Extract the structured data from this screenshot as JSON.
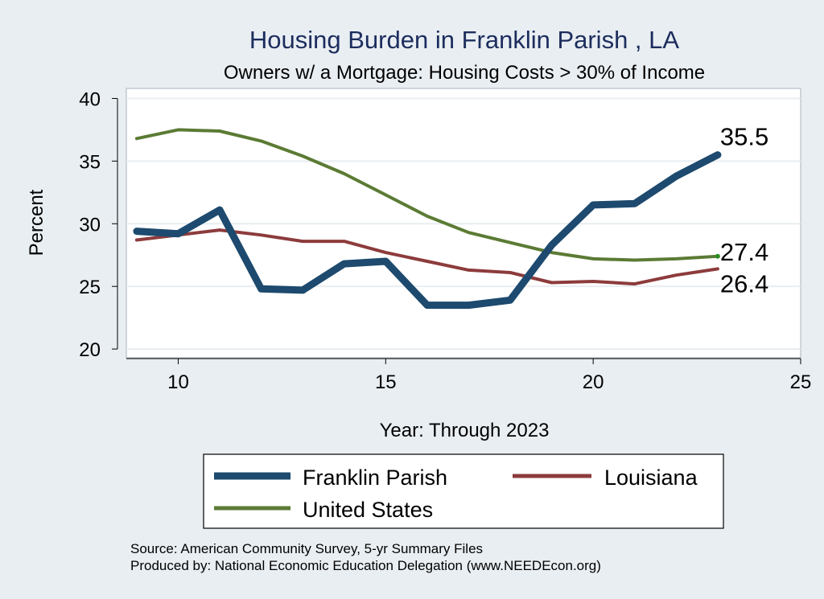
{
  "chart_data": {
    "type": "line",
    "title": "Housing Burden in Franklin Parish , LA",
    "subtitle": "Owners w/ a Mortgage: Housing Costs > 30% of Income",
    "xlabel": "Year: Through 2023",
    "ylabel": "Percent",
    "xlim": [
      8.75,
      25
    ],
    "ylim": [
      19.3,
      40.8
    ],
    "xticks": [
      10,
      15,
      20,
      25
    ],
    "yticks": [
      20,
      25,
      30,
      35,
      40
    ],
    "grid": true,
    "legend_position": "bottom",
    "x": [
      9,
      10,
      11,
      12,
      13,
      14,
      15,
      16,
      17,
      18,
      19,
      20,
      21,
      22,
      23
    ],
    "series": [
      {
        "name": "Franklin Parish",
        "color": "#1d4a6e",
        "values": [
          29.4,
          29.2,
          31.1,
          24.8,
          24.7,
          26.8,
          27.0,
          23.5,
          23.5,
          23.9,
          28.3,
          31.5,
          31.6,
          33.8,
          35.5
        ],
        "end_label": "35.5"
      },
      {
        "name": "Louisiana",
        "color": "#8d3b3c",
        "values": [
          28.7,
          29.1,
          29.5,
          29.1,
          28.6,
          28.6,
          27.7,
          27.0,
          26.3,
          26.1,
          25.3,
          25.4,
          25.2,
          25.9,
          26.4
        ],
        "end_label": "26.4"
      },
      {
        "name": "United States",
        "color": "#5b7b34",
        "values": [
          36.8,
          37.5,
          37.4,
          36.6,
          35.4,
          34.0,
          32.3,
          30.6,
          29.3,
          28.5,
          27.7,
          27.2,
          27.1,
          27.2,
          27.4
        ],
        "end_label": "27.4"
      }
    ],
    "source": "Source: American Community Survey, 5-yr Summary Files",
    "produced_by": "Produced by: National Economic Education Delegation (www.NEEDEcon.org)"
  }
}
